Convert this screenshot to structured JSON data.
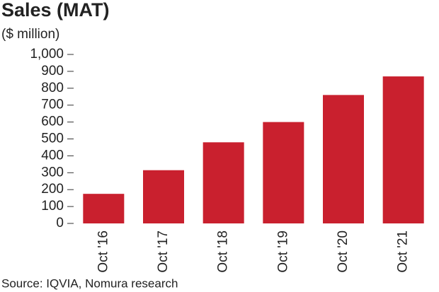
{
  "chart_data": {
    "type": "bar",
    "title": "Sales (MAT)",
    "subtitle": "($ million)",
    "categories": [
      "Oct '16",
      "Oct '17",
      "Oct '18",
      "Oct '19",
      "Oct '20",
      "Oct '21"
    ],
    "values": [
      175,
      315,
      480,
      600,
      760,
      870
    ],
    "color": "#c9202e",
    "ylim": [
      0,
      1000
    ],
    "yticks": [
      0,
      100,
      200,
      300,
      400,
      500,
      600,
      700,
      800,
      900,
      {
        "value": 1000,
        "label": "1,000"
      }
    ],
    "source": "Source: IQVIA, Nomura research"
  }
}
